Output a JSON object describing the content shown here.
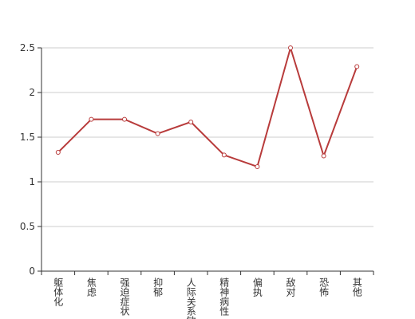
{
  "chart_data": {
    "type": "line",
    "categories": [
      "躯体化",
      "焦虑",
      "强迫症状",
      "抑郁",
      "人际关系敏感",
      "精神病性",
      "偏执",
      "敌对",
      "恐怖",
      "其他"
    ],
    "values": [
      1.33,
      1.7,
      1.7,
      1.54,
      1.67,
      1.3,
      1.17,
      2.5,
      1.29,
      2.29
    ],
    "color": "#b83b3b",
    "ylim": [
      0,
      2.5
    ],
    "yticks": [
      0,
      0.5,
      1,
      1.5,
      2,
      2.5
    ],
    "grid": true
  }
}
